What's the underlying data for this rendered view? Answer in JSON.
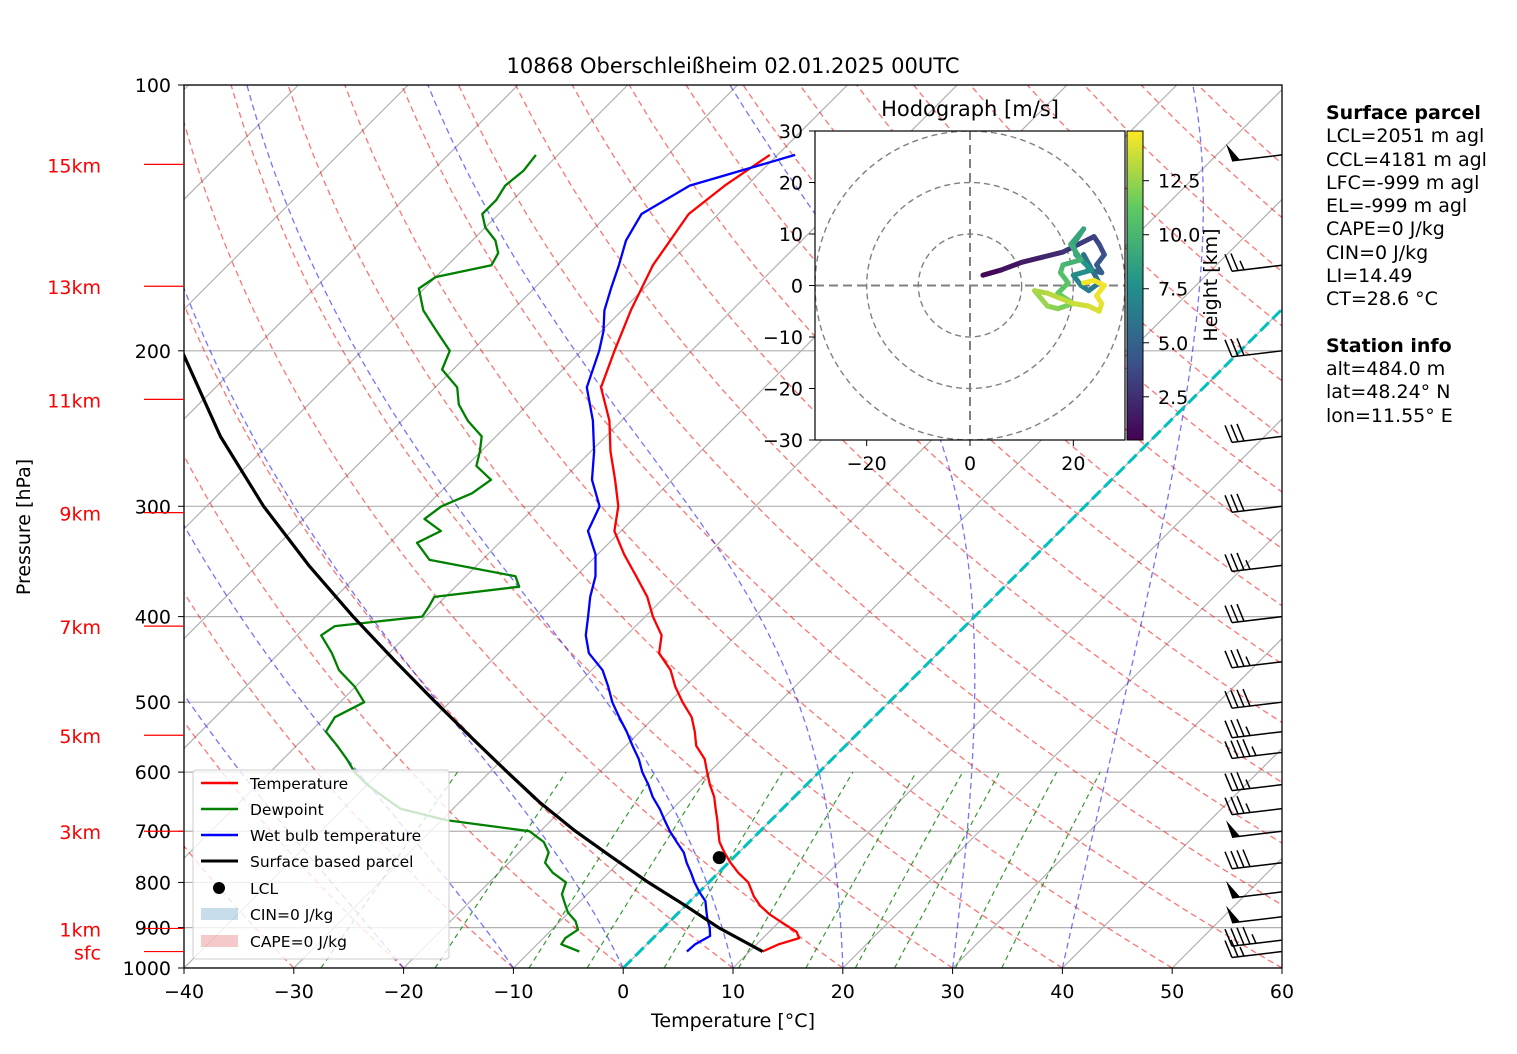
{
  "chart_data": {
    "type": "line",
    "title": "10868 Oberschleißheim 02.01.2025 00UTC",
    "xlabel": "Temperature [°C]",
    "ylabel": "Pressure [hPa]",
    "xlim": [
      -40,
      60
    ],
    "ylim": [
      1000,
      100
    ],
    "y_scale": "log",
    "skew_t": true,
    "grid": true,
    "legend_placement": "lower-left",
    "x_ticks": [
      "−40",
      "−30",
      "−20",
      "−10",
      "0",
      "10",
      "20",
      "30",
      "40",
      "50",
      "60"
    ],
    "x_tick_values": [
      -40,
      -30,
      -20,
      -10,
      0,
      10,
      20,
      30,
      40,
      50,
      60
    ],
    "y_ticks": [
      "100",
      "200",
      "300",
      "400",
      "500",
      "600",
      "700",
      "800",
      "900",
      "1000"
    ],
    "y_tick_values": [
      100,
      200,
      300,
      400,
      500,
      600,
      700,
      800,
      900,
      1000
    ],
    "height_markers": [
      {
        "label": "sfc",
        "p": 958
      },
      {
        "label": "1km",
        "p": 902
      },
      {
        "label": "3km",
        "p": 700
      },
      {
        "label": "5km",
        "p": 545
      },
      {
        "label": "7km",
        "p": 410
      },
      {
        "label": "9km",
        "p": 305
      },
      {
        "label": "11km",
        "p": 227
      },
      {
        "label": "13km",
        "p": 169
      },
      {
        "label": "15km",
        "p": 123
      }
    ],
    "series": [
      {
        "name": "Temperature",
        "color": "#ff0000",
        "p": [
          958,
          940,
          925,
          910,
          890,
          870,
          850,
          830,
          800,
          780,
          760,
          740,
          720,
          700,
          680,
          660,
          640,
          620,
          600,
          580,
          560,
          540,
          520,
          500,
          480,
          460,
          440,
          420,
          400,
          380,
          360,
          340,
          320,
          300,
          280,
          260,
          240,
          220,
          200,
          180,
          160,
          140,
          130,
          120
        ],
        "t": [
          11.2,
          12.0,
          13.3,
          12.5,
          10.5,
          8.5,
          6.8,
          5.4,
          3.6,
          1.8,
          0.2,
          -1.3,
          -2.7,
          -3.8,
          -4.9,
          -6.1,
          -7.3,
          -8.8,
          -10.2,
          -11.6,
          -13.6,
          -15.0,
          -16.6,
          -18.8,
          -20.9,
          -22.8,
          -25.4,
          -26.8,
          -29.3,
          -31.6,
          -34.5,
          -37.6,
          -40.6,
          -42.5,
          -45.2,
          -48.2,
          -51.1,
          -54.9,
          -57.0,
          -59.2,
          -61.3,
          -62.7,
          -62.0,
          -60.7
        ]
      },
      {
        "name": "Dewpoint",
        "color": "#008000",
        "p": [
          958,
          940,
          925,
          905,
          885,
          865,
          845,
          825,
          800,
          780,
          760,
          740,
          720,
          700,
          680,
          660,
          640,
          620,
          600,
          580,
          560,
          540,
          520,
          500,
          480,
          460,
          440,
          420,
          410,
          400,
          390,
          380,
          370,
          360,
          345,
          330,
          320,
          310,
          300,
          290,
          280,
          270,
          260,
          250,
          240,
          230,
          220,
          210,
          200,
          190,
          180,
          170,
          165,
          160,
          155,
          150,
          145,
          140,
          135,
          130,
          125,
          120
        ],
        "t": [
          -5.5,
          -7.8,
          -8.0,
          -7.6,
          -8.6,
          -10.1,
          -11.2,
          -12.3,
          -13.0,
          -15.1,
          -16.7,
          -17.3,
          -18.7,
          -21.0,
          -29.6,
          -34.8,
          -37.4,
          -40.0,
          -42.3,
          -44.2,
          -46.3,
          -48.6,
          -49.1,
          -47.8,
          -50.1,
          -53.0,
          -55.2,
          -57.8,
          -57.4,
          -50.3,
          -50.6,
          -51.0,
          -44.2,
          -45.5,
          -54.8,
          -57.5,
          -56.4,
          -59.0,
          -58.6,
          -57.0,
          -56.5,
          -59.1,
          -60.1,
          -61.3,
          -64.0,
          -66.3,
          -68.0,
          -71.0,
          -72.0,
          -75.0,
          -78.1,
          -80.5,
          -80.0,
          -76.0,
          -76.5,
          -77.9,
          -80.0,
          -81.5,
          -81.5,
          -82.0,
          -81.7,
          -82.0
        ]
      },
      {
        "name": "Wet bulb temperature",
        "color": "#0000ff",
        "p": [
          958,
          940,
          920,
          900,
          880,
          860,
          840,
          820,
          800,
          780,
          760,
          740,
          720,
          700,
          680,
          660,
          640,
          620,
          600,
          580,
          560,
          540,
          520,
          500,
          480,
          460,
          440,
          420,
          400,
          380,
          360,
          340,
          320,
          300,
          280,
          260,
          240,
          220,
          200,
          190,
          180,
          170,
          160,
          150,
          140,
          130,
          120
        ],
        "t": [
          4.3,
          4.4,
          5.0,
          4.2,
          3.2,
          2.3,
          1.4,
          0.0,
          -1.3,
          -2.5,
          -3.8,
          -5.0,
          -6.6,
          -8.2,
          -9.7,
          -11.2,
          -12.9,
          -14.4,
          -16.1,
          -17.6,
          -19.4,
          -21.2,
          -23.2,
          -25.2,
          -27.0,
          -29.0,
          -31.8,
          -33.7,
          -35.2,
          -36.8,
          -38.2,
          -40.2,
          -43.0,
          -44.2,
          -47.3,
          -49.7,
          -52.6,
          -56.2,
          -58.4,
          -59.8,
          -61.6,
          -63.0,
          -64.4,
          -66.0,
          -67.0,
          -65.2,
          -58.4
        ]
      },
      {
        "name": "Surface based parcel",
        "color": "#000000",
        "p": [
          958,
          900,
          850,
          800,
          750,
          700,
          650,
          600,
          550,
          500,
          450,
          400,
          350,
          300,
          250,
          200
        ],
        "t": [
          11.2,
          5.0,
          0.0,
          -5.5,
          -11.0,
          -16.8,
          -22.6,
          -28.4,
          -34.6,
          -41.3,
          -48.6,
          -56.6,
          -65.3,
          -74.8,
          -85.1,
          -96.4
        ]
      }
    ],
    "lcl_point": {
      "label": "LCL",
      "p": 750,
      "t": -1.3
    },
    "cyan_reference_line": {
      "p_start": 1000,
      "t_start": 0.0,
      "p_end": 100,
      "t_end": 0.0,
      "color": "#00bfbf"
    },
    "cin_legend": "CIN=0 J/kg",
    "cape_legend": "CAPE=0 J/kg",
    "legend_labels": [
      "Temperature",
      "Dewpoint",
      "Wet bulb temperature",
      "Surface based parcel",
      "LCL",
      "CIN=0 J/kg",
      "CAPE=0 J/kg"
    ],
    "wind_barbs": [
      {
        "p": 958,
        "speed_ms": 13
      },
      {
        "p": 930,
        "speed_ms": 22
      },
      {
        "p": 875,
        "speed_ms": 25
      },
      {
        "p": 820,
        "speed_ms": 26
      },
      {
        "p": 760,
        "speed_ms": 20
      },
      {
        "p": 700,
        "speed_ms": 25
      },
      {
        "p": 660,
        "speed_ms": 18
      },
      {
        "p": 620,
        "speed_ms": 19
      },
      {
        "p": 570,
        "speed_ms": 22
      },
      {
        "p": 540,
        "speed_ms": 18
      },
      {
        "p": 500,
        "speed_ms": 20
      },
      {
        "p": 450,
        "speed_ms": 17
      },
      {
        "p": 400,
        "speed_ms": 16
      },
      {
        "p": 350,
        "speed_ms": 17
      },
      {
        "p": 300,
        "speed_ms": 16
      },
      {
        "p": 250,
        "speed_ms": 15
      },
      {
        "p": 200,
        "speed_ms": 15
      },
      {
        "p": 160,
        "speed_ms": 14
      },
      {
        "p": 120,
        "speed_ms": 26
      }
    ],
    "hodograph": {
      "title": "Hodograph [m/s]",
      "xlim": [
        -30,
        30
      ],
      "ylim": [
        -30,
        30
      ],
      "x_ticks": [
        "−20",
        "0",
        "20"
      ],
      "x_tick_values": [
        -20,
        0,
        20
      ],
      "y_ticks": [
        "30",
        "20",
        "10",
        "0",
        "−10",
        "−20",
        "−30"
      ],
      "y_tick_values": [
        30,
        20,
        10,
        0,
        -10,
        -20,
        -30
      ],
      "rings": [
        10,
        20,
        30
      ],
      "colorbar_label": "Height [km]",
      "colorbar_ticks": [
        "2.5",
        "5.0",
        "7.5",
        "10.0",
        "12.5"
      ],
      "colorbar_tick_values": [
        2.5,
        5.0,
        7.5,
        10.0,
        12.5
      ],
      "colorbar_range": [
        0.5,
        14.8
      ],
      "u": [
        2.5,
        6.0,
        10.0,
        14.0,
        18.0,
        21.0,
        24.0,
        25.0,
        26.0,
        24.5,
        25.5,
        23.0,
        22.0,
        25.0,
        23.0,
        21.5,
        20.0,
        23.5,
        20.5,
        20.0,
        22.0,
        19.5,
        21.5,
        18.0,
        17.5,
        19.0,
        17.0,
        20.0,
        17.0,
        15.0,
        12.5,
        15.0,
        17.5,
        20.0,
        23.0,
        25.0,
        25.5,
        24.5,
        26.0,
        24.0,
        22.0
      ],
      "v": [
        2.0,
        3.0,
        4.5,
        5.5,
        6.5,
        8.0,
        9.5,
        8.0,
        6.0,
        4.0,
        2.5,
        3.0,
        6.0,
        0.5,
        -1.0,
        0.0,
        2.0,
        3.0,
        6.0,
        8.0,
        11.0,
        8.0,
        5.0,
        4.0,
        2.5,
        0.5,
        -1.5,
        -3.5,
        -4.5,
        -4.0,
        -1.0,
        -1.5,
        -2.5,
        -3.5,
        -4.0,
        -5.0,
        -3.5,
        -2.0,
        0.0,
        1.0,
        0.5
      ],
      "z_km": [
        0.5,
        1.0,
        1.5,
        2.0,
        2.5,
        3.0,
        3.2,
        3.6,
        4.0,
        4.4,
        4.8,
        5.2,
        5.6,
        6.0,
        6.4,
        6.8,
        7.2,
        7.6,
        8.0,
        8.4,
        8.8,
        9.2,
        9.6,
        10.0,
        10.4,
        10.8,
        11.2,
        11.6,
        12.0,
        12.4,
        12.8,
        13.1,
        13.4,
        13.6,
        13.8,
        14.0,
        14.2,
        14.4,
        14.5,
        14.6,
        14.7
      ]
    }
  },
  "info_panel": {
    "surface_title": "Surface parcel",
    "lcl": "LCL=2051 m agl",
    "ccl": "CCL=4181 m agl",
    "lfc": "LFC=-999 m agl",
    "el": "EL=-999 m agl",
    "cape": "CAPE=0 J/kg",
    "cin": "CIN=0 J/kg",
    "li": "LI=14.49",
    "ct": "CT=28.6 °C",
    "station_title": "Station info",
    "alt": "alt=484.0 m",
    "lat": "lat=48.24° N",
    "lon": "lon=11.55° E"
  }
}
